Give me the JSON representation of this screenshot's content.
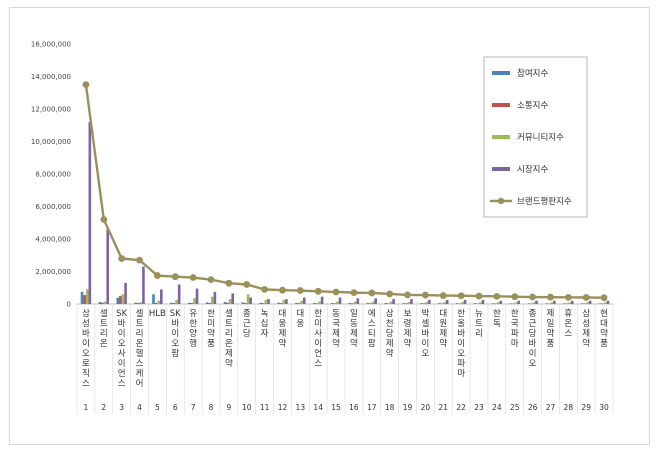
{
  "chart_data": {
    "type": "bar",
    "ylim": [
      0,
      16000000
    ],
    "yticks": [
      "0",
      "2,000,000",
      "4,000,000",
      "6,000,000",
      "8,000,000",
      "10,000,000",
      "12,000,000",
      "14,000,000",
      "16,000,000"
    ],
    "grid": false,
    "legend_position": "top-right",
    "ranks": [
      "1",
      "2",
      "3",
      "4",
      "5",
      "6",
      "7",
      "8",
      "9",
      "10",
      "11",
      "12",
      "13",
      "14",
      "15",
      "16",
      "17",
      "18",
      "19",
      "20",
      "21",
      "22",
      "23",
      "24",
      "25",
      "26",
      "27",
      "28",
      "29",
      "30"
    ],
    "categories": [
      "삼성바이오로직스",
      "셀트리온",
      "SK바이오사이언스",
      "셀트리온헬스케어",
      "HLB",
      "SK바이오팜",
      "유한양행",
      "한미약품",
      "셀트리온제약",
      "종근당",
      "녹십자",
      "대웅제약",
      "대웅",
      "한미사이언스",
      "동국제약",
      "일동제약",
      "에스티팜",
      "삼천당제약",
      "보령제약",
      "박셀바이오",
      "대원제약",
      "한올바이오파마",
      "뉴트리",
      "한독",
      "한국파마",
      "종근당바이오",
      "제일약품",
      "휴온스",
      "삼성제약",
      "현대약품"
    ],
    "series": [
      {
        "name": "참여지수",
        "color": "#4f81bd",
        "kind": "bar",
        "values": [
          750000,
          120000,
          380000,
          80000,
          600000,
          80000,
          80000,
          100000,
          120000,
          100000,
          80000,
          80000,
          70000,
          60000,
          60000,
          60000,
          60000,
          60000,
          50000,
          50000,
          50000,
          50000,
          50000,
          40000,
          40000,
          40000,
          40000,
          40000,
          40000,
          40000
        ]
      },
      {
        "name": "소통지수",
        "color": "#c0504d",
        "kind": "bar",
        "values": [
          550000,
          80000,
          500000,
          60000,
          60000,
          60000,
          60000,
          60000,
          80000,
          60000,
          50000,
          50000,
          50000,
          40000,
          40000,
          40000,
          40000,
          40000,
          40000,
          40000,
          30000,
          30000,
          30000,
          30000,
          30000,
          30000,
          30000,
          30000,
          30000,
          30000
        ]
      },
      {
        "name": "커뮤니티지수",
        "color": "#9bbb59",
        "kind": "bar",
        "values": [
          900000,
          150000,
          600000,
          120000,
          200000,
          250000,
          350000,
          450000,
          300000,
          600000,
          250000,
          250000,
          200000,
          150000,
          150000,
          150000,
          150000,
          150000,
          120000,
          120000,
          120000,
          120000,
          100000,
          100000,
          100000,
          100000,
          100000,
          100000,
          100000,
          100000
        ]
      },
      {
        "name": "시장지수",
        "color": "#8064a2",
        "kind": "bar",
        "values": [
          11200000,
          4600000,
          1300000,
          2300000,
          900000,
          1200000,
          950000,
          750000,
          650000,
          400000,
          300000,
          300000,
          400000,
          450000,
          400000,
          350000,
          350000,
          300000,
          300000,
          250000,
          250000,
          250000,
          250000,
          200000,
          200000,
          200000,
          200000,
          200000,
          200000,
          200000
        ]
      },
      {
        "name": "브랜드평판지수",
        "color": "#9c8f5a",
        "kind": "line",
        "values": [
          13500000,
          5200000,
          2800000,
          2700000,
          1750000,
          1680000,
          1630000,
          1500000,
          1280000,
          1200000,
          900000,
          850000,
          830000,
          780000,
          740000,
          700000,
          680000,
          620000,
          560000,
          550000,
          520000,
          510000,
          490000,
          470000,
          450000,
          430000,
          420000,
          410000,
          400000,
          390000
        ]
      }
    ]
  }
}
